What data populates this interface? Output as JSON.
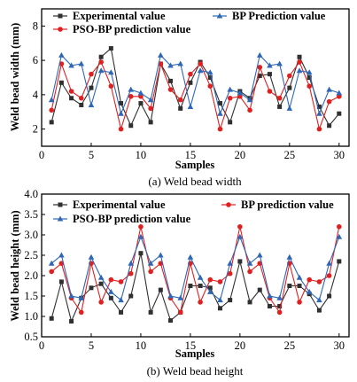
{
  "chart_data": [
    {
      "type": "line",
      "caption": "(a) Weld bead width",
      "xlabel": "Samples",
      "ylabel": "Weld bead width (mm)",
      "xlim": [
        0,
        31
      ],
      "ylim": [
        1,
        9
      ],
      "xticks": [
        0,
        5,
        10,
        15,
        20,
        25,
        30
      ],
      "yticks": [
        2,
        4,
        6,
        8
      ],
      "x": [
        1,
        2,
        3,
        4,
        5,
        6,
        7,
        8,
        9,
        10,
        11,
        12,
        13,
        14,
        15,
        16,
        17,
        18,
        19,
        20,
        21,
        22,
        23,
        24,
        25,
        26,
        27,
        28,
        29,
        30
      ],
      "series": [
        {
          "name": "Experimental value",
          "color": "#303030",
          "marker": "square",
          "values": [
            2.4,
            4.7,
            3.8,
            3.4,
            4.4,
            6.2,
            6.7,
            3.5,
            2.2,
            3.5,
            2.4,
            5.8,
            4.8,
            3.2,
            4.7,
            5.9,
            5.0,
            3.5,
            2.4,
            4.2,
            3.8,
            5.1,
            5.2,
            3.3,
            4.4,
            6.2,
            5.0,
            3.3,
            2.2,
            2.9
          ]
        },
        {
          "name": "PSO-BP prediction value",
          "color": "#e02020",
          "marker": "circle",
          "values": [
            3.1,
            5.8,
            4.2,
            3.8,
            5.2,
            5.9,
            4.5,
            2.0,
            3.9,
            3.9,
            3.2,
            5.8,
            4.3,
            3.7,
            5.2,
            5.8,
            4.5,
            2.0,
            3.8,
            3.9,
            3.1,
            5.6,
            4.2,
            3.8,
            5.1,
            5.9,
            4.5,
            2.0,
            3.6,
            3.9
          ]
        },
        {
          "name": "BP Prediction value",
          "color": "#2f67b6",
          "marker": "triangle",
          "values": [
            3.7,
            6.3,
            5.7,
            5.8,
            3.4,
            5.4,
            5.3,
            2.9,
            4.3,
            4.1,
            3.7,
            6.3,
            5.7,
            5.8,
            3.3,
            5.4,
            5.3,
            2.9,
            4.3,
            4.1,
            3.7,
            6.3,
            5.7,
            5.8,
            3.2,
            5.4,
            5.3,
            2.9,
            4.3,
            4.1
          ]
        }
      ],
      "legend": "top"
    },
    {
      "type": "line",
      "caption": "(b) Weld bead height",
      "xlabel": "Samples",
      "ylabel": "Weld bead height (mm)",
      "xlim": [
        0,
        31
      ],
      "ylim": [
        0.5,
        4.0
      ],
      "xticks": [
        0,
        5,
        10,
        15,
        20,
        25,
        30
      ],
      "yticks": [
        0.5,
        1.0,
        1.5,
        2.0,
        2.5,
        3.0,
        3.5,
        4.0
      ],
      "x": [
        1,
        2,
        3,
        4,
        5,
        6,
        7,
        8,
        9,
        10,
        11,
        12,
        13,
        14,
        15,
        16,
        17,
        18,
        19,
        20,
        21,
        22,
        23,
        24,
        25,
        26,
        27,
        28,
        29,
        30
      ],
      "series": [
        {
          "name": "Experimental value",
          "color": "#303030",
          "marker": "square",
          "values": [
            0.95,
            1.85,
            0.88,
            1.45,
            1.7,
            1.8,
            1.45,
            1.1,
            1.5,
            2.55,
            1.1,
            1.65,
            0.9,
            1.1,
            1.75,
            1.75,
            1.7,
            1.2,
            1.4,
            2.35,
            1.35,
            1.65,
            1.25,
            1.25,
            1.75,
            1.75,
            1.55,
            1.15,
            1.5,
            2.35
          ]
        },
        {
          "name": "BP prediction value",
          "color": "#e02020",
          "marker": "circle",
          "values": [
            2.1,
            2.3,
            1.45,
            1.1,
            2.3,
            1.35,
            1.9,
            1.85,
            2.05,
            3.2,
            2.1,
            2.3,
            1.45,
            1.1,
            2.3,
            1.35,
            1.9,
            1.85,
            2.05,
            3.2,
            2.1,
            2.3,
            1.45,
            1.1,
            2.3,
            1.35,
            1.9,
            1.85,
            2.0,
            3.2
          ]
        },
        {
          "name": "PSO-BP prediction value",
          "color": "#2f67b6",
          "marker": "triangle",
          "values": [
            2.3,
            2.5,
            1.5,
            1.45,
            2.45,
            1.95,
            1.6,
            1.4,
            2.3,
            2.95,
            2.3,
            2.5,
            1.5,
            1.45,
            2.45,
            1.95,
            1.6,
            1.4,
            2.3,
            2.95,
            2.3,
            2.5,
            1.5,
            1.45,
            2.45,
            1.95,
            1.6,
            1.4,
            2.3,
            2.95
          ]
        }
      ],
      "legend": "top"
    }
  ]
}
